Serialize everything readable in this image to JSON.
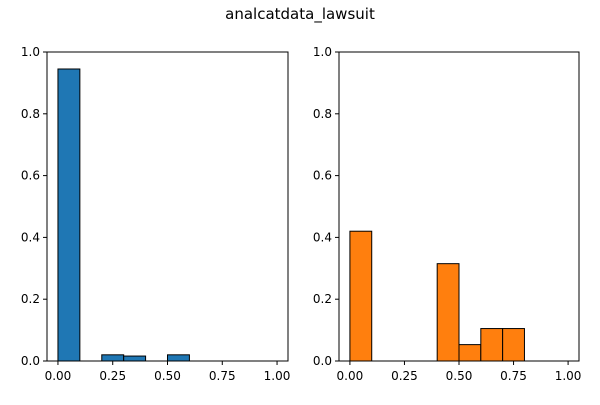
{
  "figure": {
    "suptitle": "analcatdata_lawsuit"
  },
  "chart_data": [
    {
      "type": "bar",
      "subtype": "histogram",
      "color": "#1f77b4",
      "edgecolor": "#000000",
      "bin_width": 0.1,
      "bins": [
        {
          "x0": 0.0,
          "value": 0.945
        },
        {
          "x0": 0.2,
          "value": 0.02
        },
        {
          "x0": 0.3,
          "value": 0.016
        },
        {
          "x0": 0.5,
          "value": 0.02
        }
      ],
      "xlim": [
        -0.05,
        1.05
      ],
      "ylim": [
        0,
        1.0
      ],
      "xticks": [
        0.0,
        0.25,
        0.5,
        0.75,
        1.0
      ],
      "xtick_labels": [
        "0.00",
        "0.25",
        "0.50",
        "0.75",
        "1.00"
      ],
      "yticks": [
        0.0,
        0.2,
        0.4,
        0.6,
        0.8,
        1.0
      ],
      "ytick_labels": [
        "0.0",
        "0.2",
        "0.4",
        "0.6",
        "0.8",
        "1.0"
      ],
      "grid": false
    },
    {
      "type": "bar",
      "subtype": "histogram",
      "color": "#ff7f0e",
      "edgecolor": "#000000",
      "bin_width": 0.1,
      "bins": [
        {
          "x0": 0.0,
          "value": 0.42
        },
        {
          "x0": 0.4,
          "value": 0.315
        },
        {
          "x0": 0.5,
          "value": 0.053
        },
        {
          "x0": 0.6,
          "value": 0.105
        },
        {
          "x0": 0.7,
          "value": 0.105
        }
      ],
      "xlim": [
        -0.05,
        1.05
      ],
      "ylim": [
        0,
        1.0
      ],
      "xticks": [
        0.0,
        0.25,
        0.5,
        0.75,
        1.0
      ],
      "xtick_labels": [
        "0.00",
        "0.25",
        "0.50",
        "0.75",
        "1.00"
      ],
      "yticks": [
        0.0,
        0.2,
        0.4,
        0.6,
        0.8,
        1.0
      ],
      "ytick_labels": [
        "0.0",
        "0.2",
        "0.4",
        "0.6",
        "0.8",
        "1.0"
      ],
      "grid": false
    }
  ]
}
